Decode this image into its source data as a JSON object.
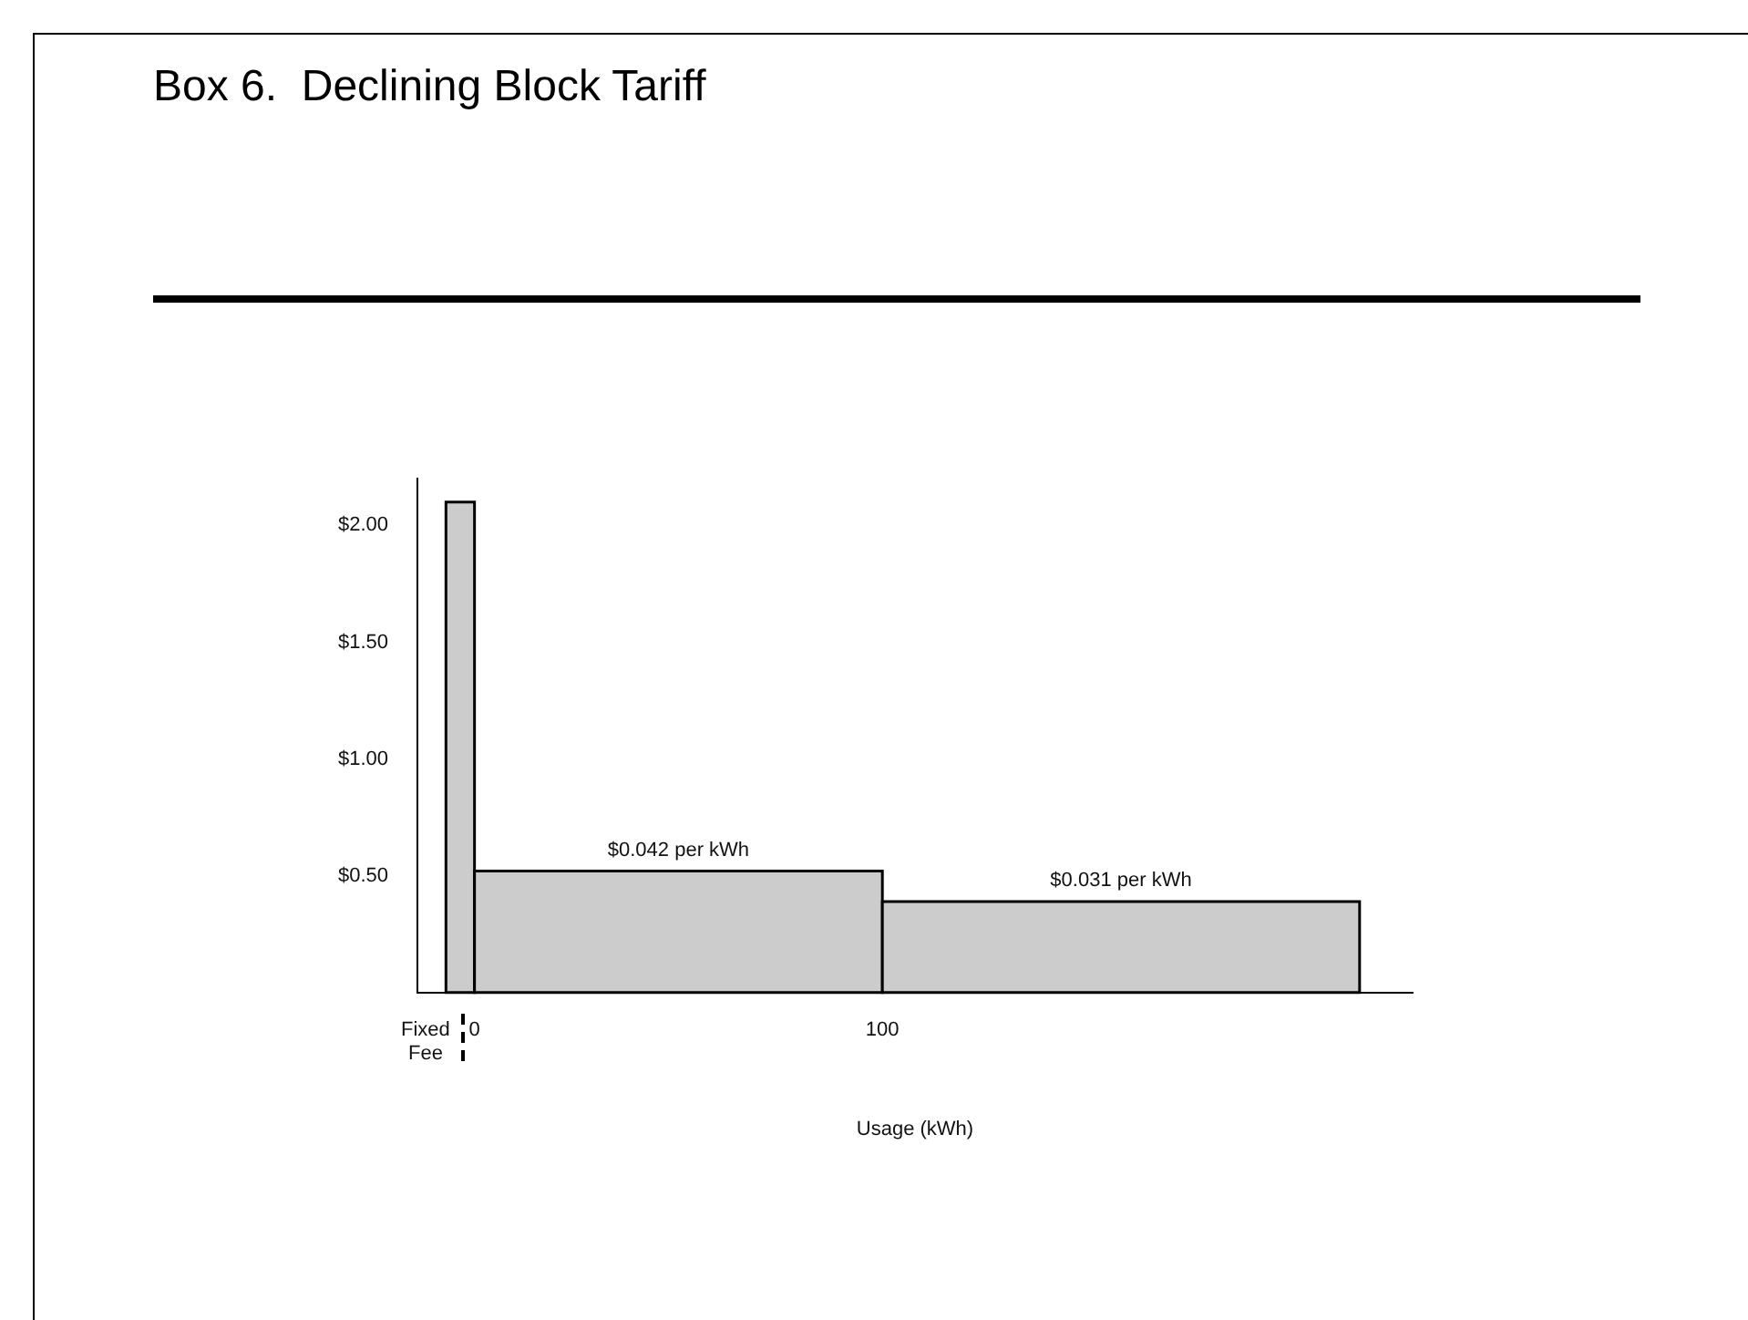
{
  "chart_data": {
    "type": "histogram",
    "title": "Box 6.  Declining Block Tariff",
    "xlabel": "Usage (kWh)",
    "bins": [
      -7,
      0,
      100,
      217
    ],
    "values": [
      2.1,
      0.52,
      0.39
    ],
    "color": "#cccccc",
    "xlim": [
      -14,
      230
    ],
    "xticks": [
      {
        "value": -12,
        "label": "Fixed Fee"
      },
      0,
      100
    ],
    "ylim": [
      0,
      2.2
    ],
    "yticks": [
      {
        "value": 0.5,
        "label": "$0.50"
      },
      {
        "value": 1,
        "label": "$1.00"
      },
      {
        "value": 1.5,
        "label": "$1.50"
      },
      {
        "value": 2,
        "label": "$2.00"
      }
    ],
    "annotations": [
      {
        "text": "$0.042 per kWh",
        "x": 50,
        "y": 0.52
      },
      {
        "text": "$0.031 per kWh",
        "x": 158.5,
        "y": 0.39
      }
    ],
    "grid": false,
    "legend": false
  }
}
